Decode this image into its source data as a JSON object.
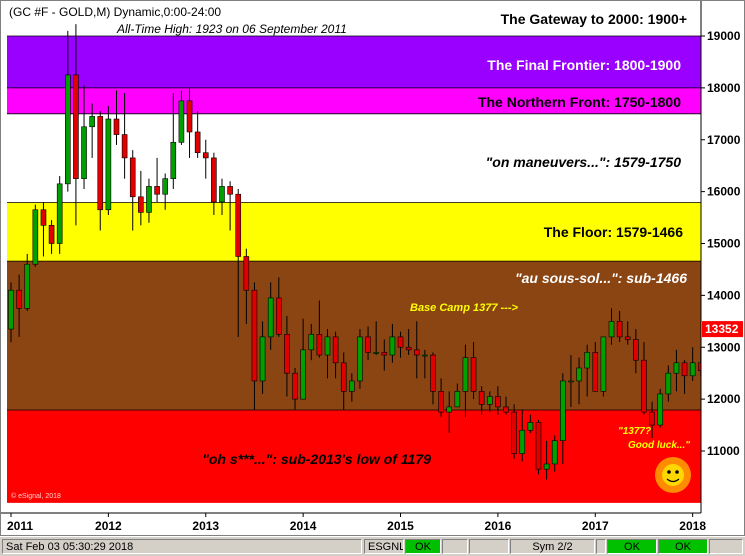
{
  "chart_data": {
    "type": "candlestick",
    "title": "(GC #F - GOLD,M) Dynamic,0:00-24:00",
    "subtitle": "All-Time High:  1923 on 06 September 2011",
    "x_tick_labels": [
      "2011",
      "2012",
      "2013",
      "2014",
      "2015",
      "2016",
      "2017",
      "2018"
    ],
    "y_tick_labels": [
      "19000",
      "18000",
      "17000",
      "16000",
      "15000",
      "14000",
      "13000",
      "12000",
      "11000"
    ],
    "ylim": [
      10100,
      19500
    ],
    "last_price_label": "13352",
    "last_price": 1335,
    "watermark": "© eSignal, 2018",
    "zones": [
      {
        "label": "The Gateway to 2000:  1900+",
        "from": 1900,
        "to": 1960,
        "color": "#ffffff",
        "text_color": "#000000",
        "italic": false
      },
      {
        "label": "The Final Frontier:  1800-1900",
        "from": 1800,
        "to": 1900,
        "color": "#9900ff",
        "text_color": "#ffffff",
        "italic": false
      },
      {
        "label": "The Northern Front:  1750-1800",
        "from": 1750,
        "to": 1800,
        "color": "#ff00ff",
        "text_color": "#000000",
        "italic": false
      },
      {
        "label": "\"on maneuvers...\":  1579-1750",
        "from": 1579,
        "to": 1750,
        "color": "#ffffff",
        "text_color": "#000000",
        "italic": true
      },
      {
        "label": "The Floor:  1579-1466",
        "from": 1466,
        "to": 1579,
        "color": "#ffff00",
        "text_color": "#000000",
        "italic": false
      },
      {
        "label": "\"au sous-sol...\":  sub-1466",
        "from": 1179,
        "to": 1466,
        "color": "#8b4513",
        "text_color": "#ffffff",
        "italic": true
      },
      {
        "label": "\"oh s***...\":  sub-2013's low of 1179",
        "from": 1000,
        "to": 1179,
        "color": "#ff0000",
        "text_color": "#000000",
        "italic": true
      }
    ],
    "annotations": [
      {
        "text": "Base Camp 1377 --->",
        "color": "#ffff00"
      },
      {
        "text": "\"1377?",
        "color": "#ffff00"
      },
      {
        "text": "Good luck...\"",
        "color": "#ffff00"
      }
    ],
    "candles": [
      [
        1335,
        1425,
        1310,
        1410
      ],
      [
        1410,
        1440,
        1320,
        1375
      ],
      [
        1375,
        1480,
        1370,
        1460
      ],
      [
        1460,
        1575,
        1455,
        1565
      ],
      [
        1565,
        1580,
        1475,
        1535
      ],
      [
        1535,
        1545,
        1480,
        1500
      ],
      [
        1500,
        1630,
        1480,
        1615
      ],
      [
        1615,
        1910,
        1600,
        1825
      ],
      [
        1825,
        1923,
        1535,
        1625
      ],
      [
        1625,
        1805,
        1605,
        1725
      ],
      [
        1725,
        1770,
        1665,
        1745
      ],
      [
        1745,
        1755,
        1525,
        1565
      ],
      [
        1565,
        1765,
        1555,
        1740
      ],
      [
        1740,
        1795,
        1690,
        1710
      ],
      [
        1710,
        1790,
        1625,
        1665
      ],
      [
        1665,
        1680,
        1525,
        1590
      ],
      [
        1590,
        1640,
        1535,
        1560
      ],
      [
        1560,
        1625,
        1540,
        1610
      ],
      [
        1610,
        1665,
        1580,
        1595
      ],
      [
        1595,
        1635,
        1565,
        1625
      ],
      [
        1625,
        1790,
        1605,
        1695
      ],
      [
        1695,
        1795,
        1690,
        1775
      ],
      [
        1775,
        1800,
        1665,
        1715
      ],
      [
        1715,
        1755,
        1665,
        1675
      ],
      [
        1675,
        1700,
        1625,
        1665
      ],
      [
        1665,
        1675,
        1555,
        1580
      ],
      [
        1580,
        1625,
        1555,
        1610
      ],
      [
        1610,
        1620,
        1525,
        1595
      ],
      [
        1595,
        1605,
        1320,
        1475
      ],
      [
        1475,
        1490,
        1345,
        1410
      ],
      [
        1410,
        1425,
        1180,
        1235
      ],
      [
        1235,
        1350,
        1210,
        1320
      ],
      [
        1320,
        1425,
        1295,
        1395
      ],
      [
        1395,
        1435,
        1320,
        1325
      ],
      [
        1325,
        1360,
        1205,
        1250
      ],
      [
        1250,
        1260,
        1180,
        1200
      ],
      [
        1200,
        1355,
        1200,
        1295
      ],
      [
        1295,
        1345,
        1275,
        1325
      ],
      [
        1325,
        1390,
        1280,
        1285
      ],
      [
        1285,
        1335,
        1240,
        1320
      ],
      [
        1320,
        1330,
        1240,
        1270
      ],
      [
        1270,
        1290,
        1180,
        1215
      ],
      [
        1215,
        1250,
        1195,
        1235
      ],
      [
        1235,
        1335,
        1220,
        1320
      ],
      [
        1320,
        1340,
        1275,
        1290
      ],
      [
        1290,
        1350,
        1285,
        1290
      ],
      [
        1290,
        1315,
        1255,
        1285
      ],
      [
        1285,
        1345,
        1270,
        1320
      ],
      [
        1320,
        1330,
        1280,
        1300
      ],
      [
        1300,
        1335,
        1285,
        1295
      ],
      [
        1295,
        1350,
        1240,
        1285
      ],
      [
        1285,
        1295,
        1240,
        1285
      ],
      [
        1285,
        1290,
        1190,
        1215
      ],
      [
        1215,
        1240,
        1165,
        1175
      ],
      [
        1175,
        1215,
        1135,
        1185
      ],
      [
        1185,
        1230,
        1195,
        1215
      ],
      [
        1215,
        1305,
        1165,
        1280
      ],
      [
        1280,
        1310,
        1200,
        1215
      ],
      [
        1215,
        1225,
        1170,
        1190
      ],
      [
        1190,
        1215,
        1175,
        1205
      ],
      [
        1205,
        1225,
        1170,
        1185
      ],
      [
        1185,
        1205,
        1170,
        1175
      ],
      [
        1175,
        1190,
        1085,
        1095
      ],
      [
        1095,
        1180,
        1080,
        1140
      ],
      [
        1140,
        1170,
        1135,
        1155
      ],
      [
        1155,
        1160,
        1055,
        1065
      ],
      [
        1065,
        1120,
        1045,
        1075
      ],
      [
        1075,
        1130,
        1060,
        1120
      ],
      [
        1120,
        1250,
        1075,
        1235
      ],
      [
        1235,
        1285,
        1185,
        1235
      ],
      [
        1235,
        1280,
        1190,
        1260
      ],
      [
        1260,
        1305,
        1205,
        1290
      ],
      [
        1290,
        1310,
        1230,
        1215
      ],
      [
        1215,
        1320,
        1205,
        1320
      ],
      [
        1320,
        1375,
        1305,
        1350
      ],
      [
        1350,
        1370,
        1310,
        1320
      ],
      [
        1320,
        1350,
        1305,
        1315
      ],
      [
        1315,
        1335,
        1250,
        1275
      ],
      [
        1275,
        1310,
        1170,
        1175
      ],
      [
        1175,
        1195,
        1125,
        1150
      ],
      [
        1150,
        1220,
        1145,
        1210
      ],
      [
        1210,
        1265,
        1195,
        1250
      ],
      [
        1250,
        1295,
        1215,
        1270
      ],
      [
        1270,
        1275,
        1210,
        1245
      ],
      [
        1245,
        1300,
        1235,
        1270
      ],
      [
        1270,
        1300,
        1245,
        1255
      ],
      [
        1255,
        1330,
        1250,
        1320
      ],
      [
        1320,
        1345,
        1285,
        1290
      ],
      [
        1290,
        1305,
        1240,
        1270
      ],
      [
        1270,
        1300,
        1235,
        1270
      ],
      [
        1270,
        1325,
        1260,
        1285
      ],
      [
        1285,
        1315,
        1265,
        1305
      ],
      [
        1305,
        1370,
        1300,
        1345
      ],
      [
        1345,
        1358,
        1325,
        1335
      ]
    ]
  },
  "status_bar": {
    "datetime": "Sat Feb 03 05:30:29 2018",
    "esgnl": "ESGNL:",
    "ok": "OK",
    "sym": "Sym 2/2"
  }
}
